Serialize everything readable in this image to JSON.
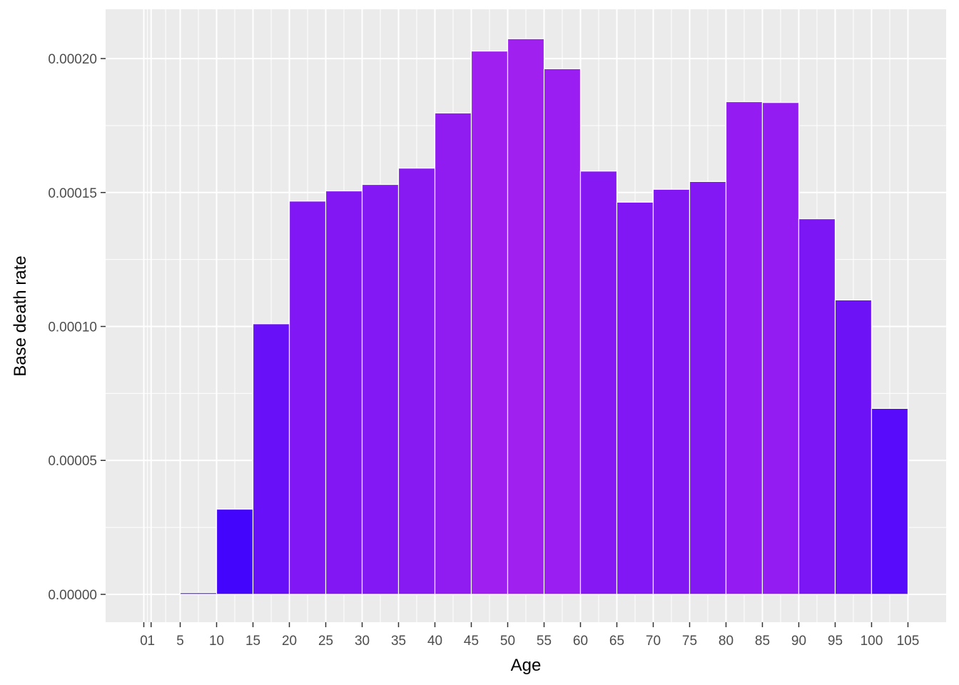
{
  "chart_data": {
    "type": "bar",
    "title": "",
    "xlabel": "Age",
    "ylabel": "Base death rate",
    "x_tick_labels": [
      "0",
      "1",
      "5",
      "10",
      "15",
      "20",
      "25",
      "30",
      "35",
      "40",
      "45",
      "50",
      "55",
      "60",
      "65",
      "70",
      "75",
      "80",
      "85",
      "90",
      "95",
      "100",
      "105"
    ],
    "x_ticks": [
      0,
      1,
      5,
      10,
      15,
      20,
      25,
      30,
      35,
      40,
      45,
      50,
      55,
      60,
      65,
      70,
      75,
      80,
      85,
      90,
      95,
      100,
      105
    ],
    "y_tick_labels": [
      "0.00000",
      "0.00005",
      "0.00010",
      "0.00015",
      "0.00020"
    ],
    "y_ticks": [
      0,
      5e-05,
      0.0001,
      0.00015,
      0.0002
    ],
    "xlim": [
      -5.25,
      110.25
    ],
    "ylim": [
      -1.04e-05,
      0.0002184
    ],
    "grid": true,
    "legend": "none",
    "bars": [
      {
        "x_start": 0,
        "x_end": 1,
        "value": 0
      },
      {
        "x_start": 1,
        "x_end": 5,
        "value": 0
      },
      {
        "x_start": 5,
        "x_end": 10,
        "value": 6e-07
      },
      {
        "x_start": 10,
        "x_end": 15,
        "value": 3.18e-05
      },
      {
        "x_start": 15,
        "x_end": 20,
        "value": 0.000101
      },
      {
        "x_start": 20,
        "x_end": 25,
        "value": 0.0001468
      },
      {
        "x_start": 25,
        "x_end": 30,
        "value": 0.0001506
      },
      {
        "x_start": 30,
        "x_end": 35,
        "value": 0.000153
      },
      {
        "x_start": 35,
        "x_end": 40,
        "value": 0.0001591
      },
      {
        "x_start": 40,
        "x_end": 45,
        "value": 0.0001797
      },
      {
        "x_start": 45,
        "x_end": 50,
        "value": 0.0002028
      },
      {
        "x_start": 50,
        "x_end": 55,
        "value": 0.0002074
      },
      {
        "x_start": 55,
        "x_end": 60,
        "value": 0.0001962
      },
      {
        "x_start": 60,
        "x_end": 65,
        "value": 0.000158
      },
      {
        "x_start": 65,
        "x_end": 70,
        "value": 0.0001464
      },
      {
        "x_start": 70,
        "x_end": 75,
        "value": 0.0001512
      },
      {
        "x_start": 75,
        "x_end": 80,
        "value": 0.0001541
      },
      {
        "x_start": 80,
        "x_end": 85,
        "value": 0.0001839
      },
      {
        "x_start": 85,
        "x_end": 90,
        "value": 0.0001836
      },
      {
        "x_start": 90,
        "x_end": 95,
        "value": 0.0001402
      },
      {
        "x_start": 95,
        "x_end": 100,
        "value": 0.0001099
      },
      {
        "x_start": 100,
        "x_end": 105,
        "value": 6.94e-05
      }
    ],
    "fill_gradient": {
      "low": "#3300ff",
      "high": "#a020f0"
    }
  },
  "colors": {
    "panel_background": "#ebebeb",
    "grid_line": "#ffffff",
    "tick_text": "#4d4d4d",
    "tick_mark": "#333333",
    "bar_outline": "#ffffff"
  }
}
